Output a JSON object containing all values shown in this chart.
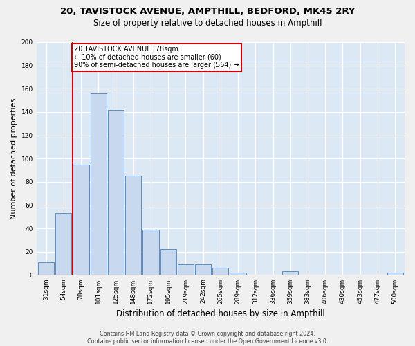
{
  "title1": "20, TAVISTOCK AVENUE, AMPTHILL, BEDFORD, MK45 2RY",
  "title2": "Size of property relative to detached houses in Ampthill",
  "xlabel": "Distribution of detached houses by size in Ampthill",
  "ylabel": "Number of detached properties",
  "footer1": "Contains HM Land Registry data © Crown copyright and database right 2024.",
  "footer2": "Contains public sector information licensed under the Open Government Licence v3.0.",
  "bin_labels": [
    "31sqm",
    "54sqm",
    "78sqm",
    "101sqm",
    "125sqm",
    "148sqm",
    "172sqm",
    "195sqm",
    "219sqm",
    "242sqm",
    "265sqm",
    "289sqm",
    "312sqm",
    "336sqm",
    "359sqm",
    "383sqm",
    "406sqm",
    "430sqm",
    "453sqm",
    "477sqm",
    "500sqm"
  ],
  "bar_values": [
    11,
    53,
    95,
    156,
    142,
    85,
    39,
    22,
    9,
    9,
    6,
    2,
    0,
    0,
    3,
    0,
    0,
    0,
    0,
    0,
    2
  ],
  "bar_color": "#c8d8ee",
  "bar_edge_color": "#5b8ec4",
  "annotation_text": "20 TAVISTOCK AVENUE: 78sqm\n← 10% of detached houses are smaller (60)\n90% of semi-detached houses are larger (564) →",
  "annotation_box_color": "#ffffff",
  "annotation_box_edge_color": "#cc0000",
  "vline_color": "#cc0000",
  "vline_bar_index": 2,
  "ylim": [
    0,
    200
  ],
  "yticks": [
    0,
    20,
    40,
    60,
    80,
    100,
    120,
    140,
    160,
    180,
    200
  ],
  "background_color": "#dde8f5",
  "grid_color": "#ffffff",
  "fig_facecolor": "#f0f0f0",
  "title1_fontsize": 9.5,
  "title2_fontsize": 8.5,
  "xlabel_fontsize": 8.5,
  "ylabel_fontsize": 8,
  "annot_fontsize": 7,
  "tick_fontsize": 6.5
}
